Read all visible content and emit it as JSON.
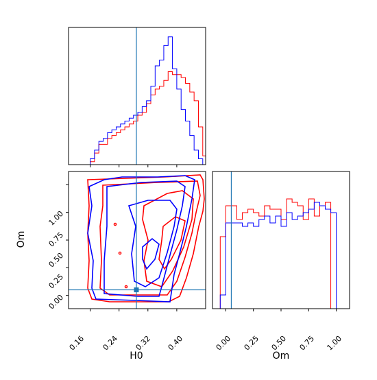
{
  "chart_data": [
    {
      "panel": "H0 marginal",
      "type": "histogram-step",
      "x_range": [
        0.1,
        0.48
      ],
      "y_ticks_shown": false,
      "truth_line": 0.288,
      "series": [
        {
          "color": "#ff0000",
          "bins": [
            0.16,
            0.172,
            0.184,
            0.196,
            0.208,
            0.22,
            0.232,
            0.244,
            0.256,
            0.268,
            0.28,
            0.292,
            0.304,
            0.316,
            0.328,
            0.34,
            0.352,
            0.364,
            0.376,
            0.388,
            0.4,
            0.412,
            0.424,
            0.436,
            0.448,
            0.46,
            0.472,
            0.484
          ],
          "counts": [
            1,
            4,
            7,
            7,
            9,
            10,
            11,
            12,
            13,
            14,
            15,
            17,
            18,
            21,
            24,
            26,
            27,
            29,
            32,
            31,
            31,
            30,
            28,
            25,
            22,
            13,
            3
          ]
        },
        {
          "color": "#0000ff",
          "bins": [
            0.16,
            0.172,
            0.184,
            0.196,
            0.208,
            0.22,
            0.232,
            0.244,
            0.256,
            0.268,
            0.28,
            0.292,
            0.304,
            0.316,
            0.328,
            0.34,
            0.352,
            0.364,
            0.376,
            0.388,
            0.4,
            0.412,
            0.424,
            0.436,
            0.448,
            0.46,
            0.472,
            0.484
          ],
          "counts": [
            2,
            5,
            8,
            9,
            11,
            12,
            13,
            14,
            15,
            16,
            17,
            18,
            20,
            22,
            27,
            34,
            36,
            41,
            44,
            33,
            26,
            19,
            15,
            10,
            5,
            2,
            0
          ]
        }
      ]
    },
    {
      "panel": "H0 vs Om joint",
      "type": "contour",
      "xlabel": "H0",
      "ylabel": "Om",
      "x_range": [
        0.1,
        0.48
      ],
      "y_range": [
        -0.12,
        1.12
      ],
      "x_ticks": [
        "0.16",
        "0.24",
        "0.32",
        "0.40"
      ],
      "y_ticks": [
        "0.00",
        "0.25",
        "0.50",
        "0.75",
        "1.00"
      ],
      "truth_point": {
        "x": 0.288,
        "y": 0.05
      },
      "series": [
        {
          "color": "#ff0000"
        },
        {
          "color": "#0000ff"
        }
      ]
    },
    {
      "panel": "Om marginal",
      "type": "histogram-step",
      "xlabel": "Om",
      "x_range": [
        -0.12,
        1.12
      ],
      "x_ticks": [
        "0.00",
        "0.25",
        "0.50",
        "0.75",
        "1.00"
      ],
      "y_ticks_shown": false,
      "truth_line": 0.05,
      "series": [
        {
          "color": "#ff0000",
          "bins": [
            -0.05,
            0.0,
            0.05,
            0.1,
            0.15,
            0.2,
            0.25,
            0.3,
            0.35,
            0.4,
            0.45,
            0.5,
            0.55,
            0.6,
            0.65,
            0.7,
            0.75,
            0.8,
            0.85,
            0.9,
            0.95,
            1.0
          ],
          "counts": [
            21,
            30,
            30,
            26,
            28,
            29,
            28,
            27,
            30,
            29,
            29,
            26,
            32,
            31,
            30,
            26,
            32,
            27,
            30,
            31,
            0
          ]
        },
        {
          "color": "#0000ff",
          "bins": [
            -0.05,
            0.0,
            0.05,
            0.1,
            0.15,
            0.2,
            0.25,
            0.3,
            0.35,
            0.4,
            0.45,
            0.5,
            0.55,
            0.6,
            0.65,
            0.7,
            0.75,
            0.8,
            0.85,
            0.9,
            0.95,
            1.0,
            1.05
          ],
          "counts": [
            4,
            25,
            25,
            25,
            24,
            25,
            24,
            26,
            27,
            25,
            27,
            24,
            28,
            26,
            27,
            28,
            29,
            31,
            30,
            29,
            28,
            0
          ]
        }
      ]
    }
  ]
}
